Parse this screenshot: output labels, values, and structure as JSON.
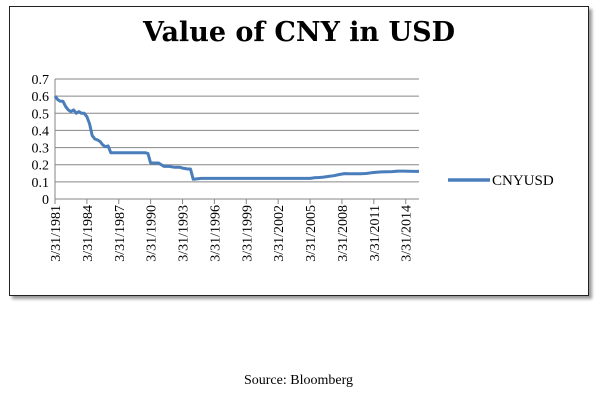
{
  "chart_data": {
    "type": "line",
    "title": "Value of  CNY in USD",
    "xlabel": "",
    "ylabel": "",
    "ylim": [
      0,
      0.7
    ],
    "yticks": [
      0,
      0.1,
      0.2,
      0.3,
      0.4,
      0.5,
      0.6,
      0.7
    ],
    "ytick_labels": [
      "0",
      "0.1",
      "0.2",
      "0.3",
      "0.4",
      "0.5",
      "0.6",
      "0.7"
    ],
    "xlim": [
      1981.25,
      2015.5
    ],
    "xticks": [
      1981.25,
      1984.25,
      1987.25,
      1990.25,
      1993.25,
      1996.25,
      1999.25,
      2002.25,
      2005.25,
      2008.25,
      2011.25,
      2014.25
    ],
    "xtick_labels": [
      "3/31/1981",
      "3/31/1984",
      "3/31/1987",
      "3/31/1990",
      "3/31/1993",
      "3/31/1996",
      "3/31/1999",
      "3/31/2002",
      "3/31/2005",
      "3/31/2008",
      "3/31/2011",
      "3/31/2014"
    ],
    "grid": "horizontal",
    "legend_position": "right",
    "series": [
      {
        "name": "CNYUSD",
        "color": "#4a7ebb",
        "x": [
          1981.25,
          1981.5,
          1981.75,
          1982.0,
          1982.25,
          1982.5,
          1982.75,
          1983.0,
          1983.25,
          1983.5,
          1983.75,
          1984.0,
          1984.25,
          1984.5,
          1984.75,
          1985.0,
          1985.25,
          1985.5,
          1985.75,
          1986.0,
          1986.25,
          1986.5,
          1986.75,
          1987.0,
          1987.25,
          1988.0,
          1989.0,
          1989.75,
          1990.0,
          1990.25,
          1990.75,
          1991.0,
          1991.5,
          1992.0,
          1992.5,
          1993.0,
          1993.25,
          1993.75,
          1994.0,
          1994.25,
          1995.0,
          1996.0,
          1998.0,
          2000.0,
          2002.0,
          2004.0,
          2005.25,
          2005.75,
          2006.0,
          2006.5,
          2007.0,
          2007.5,
          2008.0,
          2008.5,
          2009.0,
          2010.0,
          2010.5,
          2011.0,
          2011.5,
          2012.0,
          2013.0,
          2013.5,
          2014.0,
          2014.5,
          2015.0,
          2015.5
        ],
        "values": [
          0.6,
          0.58,
          0.57,
          0.57,
          0.54,
          0.52,
          0.51,
          0.52,
          0.5,
          0.51,
          0.5,
          0.5,
          0.48,
          0.44,
          0.37,
          0.35,
          0.345,
          0.335,
          0.315,
          0.305,
          0.31,
          0.27,
          0.27,
          0.27,
          0.27,
          0.27,
          0.27,
          0.27,
          0.265,
          0.21,
          0.21,
          0.21,
          0.19,
          0.19,
          0.185,
          0.185,
          0.18,
          0.175,
          0.175,
          0.115,
          0.12,
          0.12,
          0.12,
          0.12,
          0.12,
          0.12,
          0.12,
          0.125,
          0.125,
          0.128,
          0.132,
          0.136,
          0.143,
          0.148,
          0.147,
          0.147,
          0.149,
          0.153,
          0.156,
          0.158,
          0.16,
          0.163,
          0.163,
          0.162,
          0.161,
          0.161
        ]
      }
    ]
  },
  "source": "Source: Bloomberg"
}
